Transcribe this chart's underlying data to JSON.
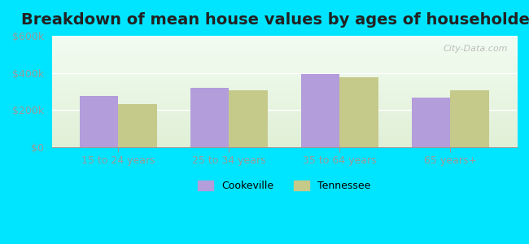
{
  "title": "Breakdown of mean house values by ages of householders",
  "categories": [
    "15 to 24 years",
    "25 to 34 years",
    "35 to 64 years",
    "65 years+"
  ],
  "cookeville_values": [
    275000,
    320000,
    395000,
    265000
  ],
  "tennessee_values": [
    230000,
    305000,
    375000,
    305000
  ],
  "cookeville_color": "#b39ddb",
  "tennessee_color": "#c5c98a",
  "ylim": [
    0,
    600000
  ],
  "yticks": [
    0,
    200000,
    400000,
    600000
  ],
  "ytick_labels": [
    "$0",
    "$200k",
    "$400k",
    "$600k"
  ],
  "bar_width": 0.35,
  "title_fontsize": 14,
  "axis_color": "#999999",
  "tick_color": "#999999",
  "legend_labels": [
    "Cookeville",
    "Tennessee"
  ],
  "watermark": "City-Data.com",
  "outer_bg": "#00e5ff"
}
